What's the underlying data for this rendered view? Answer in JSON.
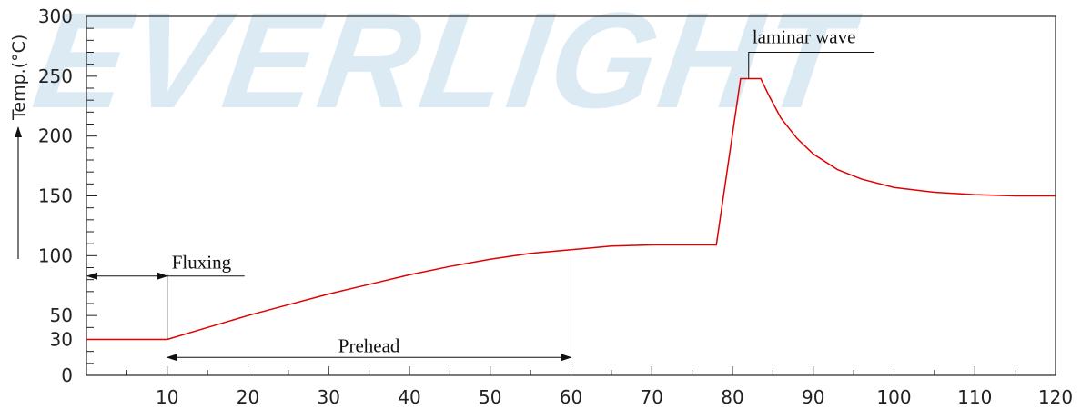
{
  "watermark": "EVERLIGHT",
  "chart_data": {
    "type": "line",
    "ylabel": "Temp.(°C)",
    "xlim": [
      0,
      120
    ],
    "ylim": [
      0,
      300
    ],
    "x_ticks": [
      10,
      20,
      30,
      40,
      50,
      60,
      70,
      80,
      90,
      100,
      110,
      120
    ],
    "y_tick_labels": [
      0,
      30,
      50,
      100,
      150,
      200,
      250,
      300
    ],
    "grid": false,
    "series": [
      {
        "color": "#e00000",
        "points": [
          [
            0,
            30
          ],
          [
            10,
            30
          ],
          [
            15,
            40
          ],
          [
            20,
            50
          ],
          [
            25,
            59
          ],
          [
            30,
            68
          ],
          [
            35,
            76
          ],
          [
            40,
            84
          ],
          [
            45,
            91
          ],
          [
            50,
            97
          ],
          [
            55,
            102
          ],
          [
            60,
            105
          ],
          [
            65,
            108
          ],
          [
            70,
            109
          ],
          [
            78,
            109
          ],
          [
            81,
            248
          ],
          [
            83.5,
            248
          ],
          [
            84.5,
            234
          ],
          [
            86,
            215
          ],
          [
            88,
            198
          ],
          [
            90,
            185
          ],
          [
            93,
            172
          ],
          [
            96,
            164
          ],
          [
            100,
            157
          ],
          [
            105,
            153
          ],
          [
            110,
            151
          ],
          [
            115,
            150
          ],
          [
            120,
            150
          ]
        ]
      }
    ],
    "annotations": [
      {
        "label": "Fluxing",
        "type": "double-arrow",
        "x_from": 0,
        "x_to": 10,
        "y": 83
      },
      {
        "label": "Prehead",
        "type": "double-arrow",
        "x_from": 10,
        "x_to": 60,
        "y": 15
      },
      {
        "label": "laminar wave",
        "type": "leader",
        "x": 82,
        "y": 248
      }
    ]
  }
}
